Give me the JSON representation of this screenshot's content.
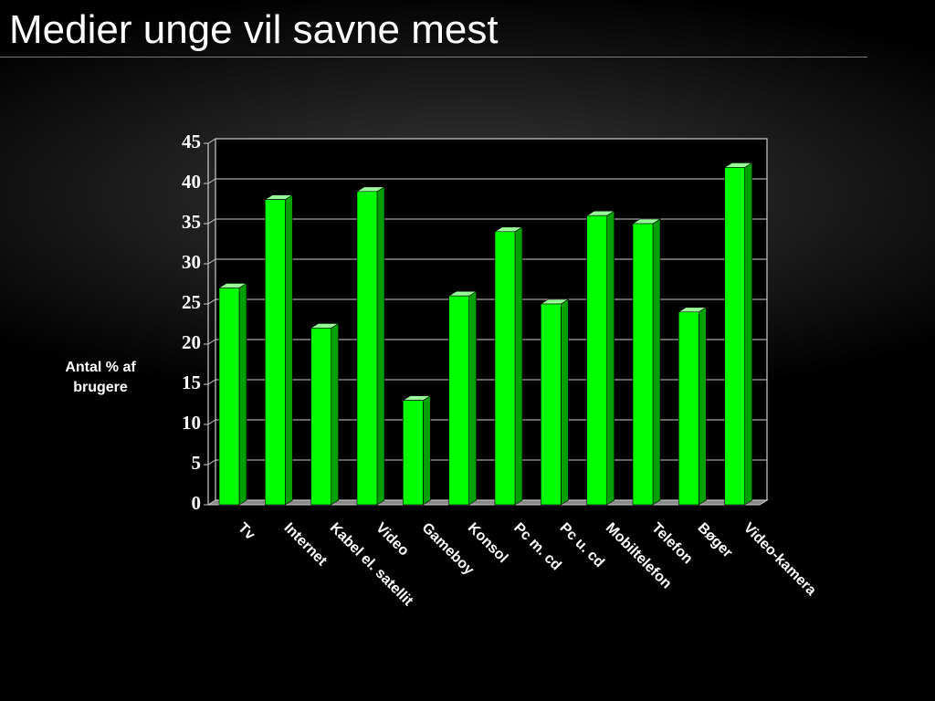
{
  "chart_data": {
    "type": "bar3d",
    "title": "Medier unge vil savne mest",
    "y_label": "Antal % af brugere",
    "categories": [
      "Tv",
      "Internet",
      "Kabel el. satellit",
      "Video",
      "Gameboy",
      "Konsol",
      "Pc m. cd",
      "Pc u. cd",
      "Mobiltelefon",
      "Telefon",
      "Bøger",
      "Video-kamera"
    ],
    "values": [
      27,
      38,
      22,
      39,
      13,
      26,
      34,
      25,
      36,
      35,
      24,
      42
    ],
    "color": "#00ff00",
    "ylim": [
      0,
      45
    ],
    "yticks": [
      0,
      5,
      10,
      15,
      20,
      25,
      30,
      35,
      40,
      45
    ],
    "grid": true
  }
}
